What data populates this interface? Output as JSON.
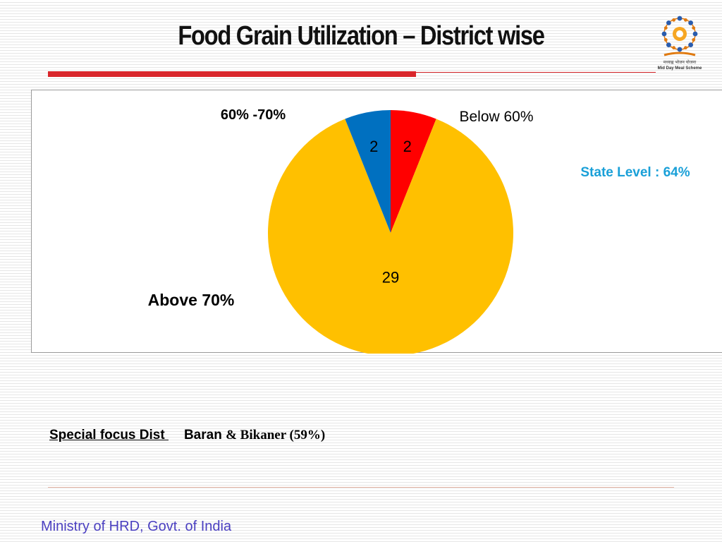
{
  "slide": {
    "title": "Food Grain Utilization – District wise",
    "special_focus_label": "Special focus Dist ",
    "special_focus_district": "Baran",
    "special_focus_detail": "& Bikaner (59%)",
    "footer": "Ministry of HRD, Govt. of India",
    "logo": {
      "icon": "mid-day-meal-logo",
      "caption_line1": "मध्याह्न भोजन योजना",
      "caption_line2": "Mid Day Meal Scheme"
    },
    "accent_colors": {
      "rule": "#d9262b",
      "state_level": "#1aa0d8",
      "footer": "#4a3fc0"
    }
  },
  "chart_data": {
    "type": "pie",
    "title": "",
    "slices": [
      {
        "name": "Below 60%",
        "value": 2,
        "color": "#ff0000"
      },
      {
        "name": "Above 70%",
        "value": 29,
        "color": "#ffc000"
      },
      {
        "name": "60% -70%",
        "value": 2,
        "color": "#0070c0"
      }
    ],
    "annotation": "State Level : 64%"
  }
}
